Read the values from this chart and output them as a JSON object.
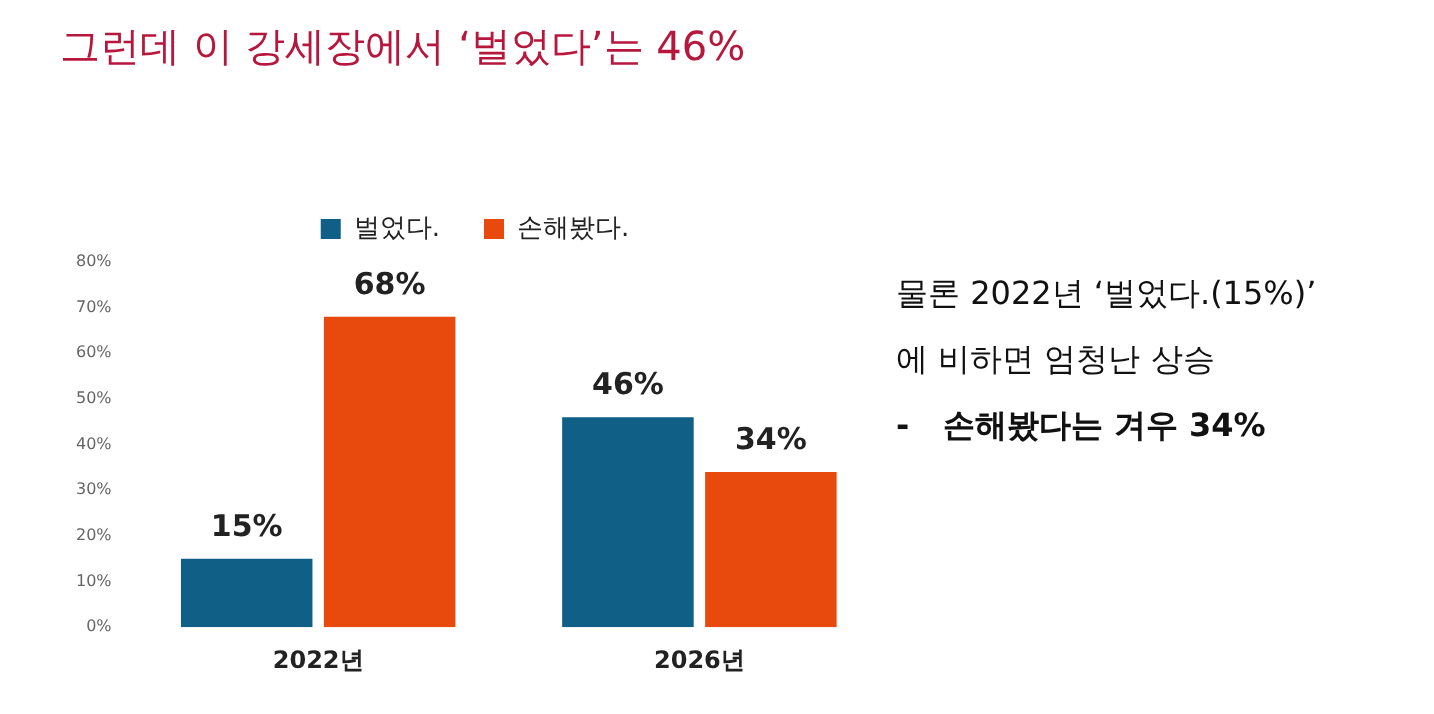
{
  "chart_data": {
    "type": "bar",
    "title": "그런데 이 강세장에서 ‘벌었다’는 46%",
    "categories": [
      "2022년",
      "2026년"
    ],
    "series": [
      {
        "name": "벌었다.",
        "color": "#0f5f86",
        "values": [
          15,
          46
        ]
      },
      {
        "name": "손해봤다.",
        "color": "#e84a0e",
        "values": [
          68,
          34
        ]
      }
    ],
    "ylim": [
      0,
      80
    ],
    "yticks": [
      {
        "value": 0,
        "label": "0%"
      },
      {
        "value": 10,
        "label": "10%"
      },
      {
        "value": 20,
        "label": "20%"
      },
      {
        "value": 30,
        "label": "30%"
      },
      {
        "value": 40,
        "label": "40%"
      },
      {
        "value": 50,
        "label": "50%"
      },
      {
        "value": 60,
        "label": "60%"
      },
      {
        "value": 70,
        "label": "70%"
      },
      {
        "value": 80,
        "label": "80%"
      }
    ],
    "value_labels": [
      [
        "15%",
        "46%"
      ],
      [
        "68%",
        "34%"
      ]
    ],
    "grid": false,
    "legend": "top",
    "annotations": [
      "물론 2022년 ‘벌었다.(15%)’",
      "에 비하면 엄청난 상승",
      "-   손해봤다는 겨우 34%"
    ]
  }
}
